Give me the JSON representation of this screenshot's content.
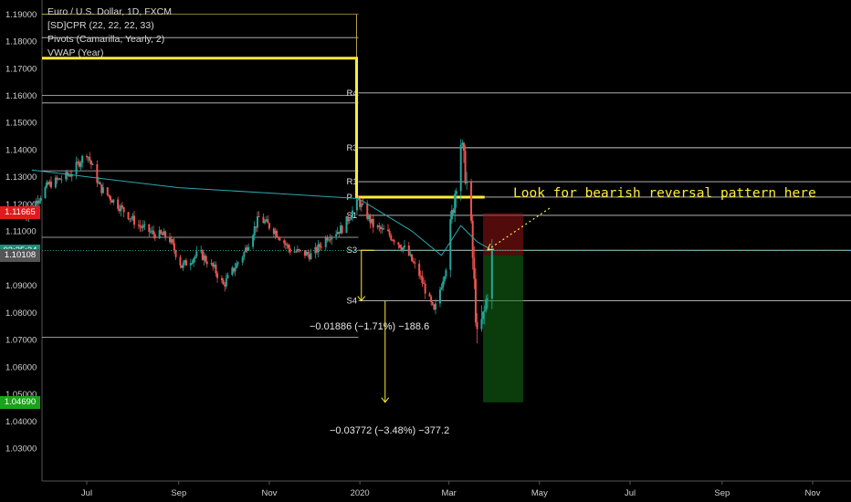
{
  "legend": {
    "title": "Euro / U.S. Dollar, 1D, FXCM",
    "line1": "[SD]CPR (22, 22, 22, 33)",
    "line2": "Pivots (Camarilla, Yearly, 2)",
    "line3": "VWAP (Year)"
  },
  "annotation": "Look for bearish reversal pattern here",
  "measure1": "−0.01886 (−1.71%) −188.6",
  "measure2": "−0.03772 (−3.48%) −377.2",
  "tags": [
    {
      "text": "1.11665",
      "value": 1.11665,
      "color": "#e01b1b"
    },
    {
      "text": "03:35:34",
      "value": 1.1028,
      "color": "#1e8c7a"
    },
    {
      "text": "1.10108",
      "value": 1.10108,
      "color": "#555555"
    },
    {
      "text": "1.04690",
      "value": 1.0469,
      "color": "#1aa31a"
    }
  ],
  "colors": {
    "up": "#26a69a",
    "down": "#ef5350",
    "vwap": "#2aa8b0",
    "cpr": "#ffeb3b",
    "pivot": "#c8c8c8"
  },
  "chart_data": {
    "type": "candlestick",
    "title": "Euro / U.S. Dollar, 1D, FXCM",
    "ylim": [
      1.02,
      1.195
    ],
    "y_ticks": [
      1.19,
      1.18,
      1.17,
      1.16,
      1.15,
      1.14,
      1.13,
      1.12,
      1.11,
      1.1,
      1.09,
      1.08,
      1.07,
      1.06,
      1.05,
      1.04,
      1.03
    ],
    "x_labels": [
      "Jul",
      "Sep",
      "Nov",
      "2020",
      "Mar",
      "May",
      "Jul",
      "Sep",
      "Nov"
    ],
    "x_label_dates": [
      "2019-07-01",
      "2019-09-01",
      "2019-11-01",
      "2020-01-01",
      "2020-03-01",
      "2020-05-01",
      "2020-07-01",
      "2020-09-01",
      "2020-11-01"
    ],
    "x_range": [
      "2019-05-18",
      "2020-11-30"
    ],
    "price_path": [
      [
        "2019-05-20",
        1.115
      ],
      [
        "2019-06-05",
        1.127
      ],
      [
        "2019-06-20",
        1.131
      ],
      [
        "2019-07-01",
        1.139
      ],
      [
        "2019-07-10",
        1.126
      ],
      [
        "2019-07-25",
        1.118
      ],
      [
        "2019-08-05",
        1.112
      ],
      [
        "2019-08-15",
        1.109
      ],
      [
        "2019-08-25",
        1.108
      ],
      [
        "2019-09-03",
        1.097
      ],
      [
        "2019-09-15",
        1.102
      ],
      [
        "2019-09-25",
        1.096
      ],
      [
        "2019-10-01",
        1.09
      ],
      [
        "2019-10-15",
        1.102
      ],
      [
        "2019-10-25",
        1.115
      ],
      [
        "2019-11-05",
        1.11
      ],
      [
        "2019-11-15",
        1.103
      ],
      [
        "2019-11-30",
        1.101
      ],
      [
        "2019-12-10",
        1.108
      ],
      [
        "2019-12-20",
        1.111
      ],
      [
        "2019-12-31",
        1.121
      ],
      [
        "2020-01-10",
        1.112
      ],
      [
        "2020-01-20",
        1.109
      ],
      [
        "2020-02-01",
        1.103
      ],
      [
        "2020-02-10",
        1.094
      ],
      [
        "2020-02-20",
        1.08
      ],
      [
        "2020-02-28",
        1.097
      ],
      [
        "2020-03-09",
        1.143
      ],
      [
        "2020-03-15",
        1.12
      ],
      [
        "2020-03-20",
        1.07
      ],
      [
        "2020-03-25",
        1.08
      ],
      [
        "2020-03-30",
        1.101
      ]
    ],
    "pivots": [
      {
        "label": "R4",
        "value": 1.1609
      },
      {
        "label": "R3",
        "value": 1.1407
      },
      {
        "label": "R1",
        "value": 1.1282
      },
      {
        "label": "P",
        "value": 1.1225
      },
      {
        "label": "S1",
        "value": 1.1158
      },
      {
        "label": "S3",
        "value": 1.1029
      },
      {
        "label": "S4",
        "value": 1.0843
      }
    ],
    "series": [
      {
        "name": "VWAP (Year)",
        "points": [
          [
            "2019-05-25",
            1.1325
          ],
          [
            "2019-07-01",
            1.13
          ],
          [
            "2019-09-01",
            1.126
          ],
          [
            "2019-11-01",
            1.124
          ],
          [
            "2019-12-31",
            1.122
          ],
          [
            "2020-01-15",
            1.117
          ],
          [
            "2020-02-05",
            1.11
          ],
          [
            "2020-02-25",
            1.101
          ],
          [
            "2020-03-09",
            1.112
          ],
          [
            "2020-03-20",
            1.106
          ],
          [
            "2020-03-30",
            1.103
          ]
        ]
      }
    ]
  }
}
